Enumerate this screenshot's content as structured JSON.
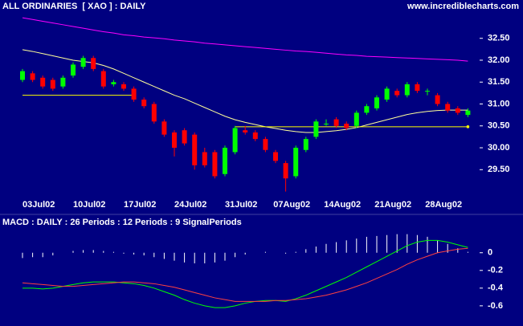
{
  "chart_data": [
    {
      "type": "candlestick",
      "title": "ALL ORDINARIES  [ XAO ] : DAILY",
      "subtitle": "www.incrediblecharts.com",
      "categories": [
        null,
        null,
        "03Jul02",
        null,
        null,
        null,
        null,
        "10Jul02",
        null,
        null,
        null,
        null,
        "17Jul02",
        null,
        null,
        null,
        null,
        "24Jul02",
        null,
        null,
        null,
        null,
        "31Jul02",
        null,
        null,
        null,
        null,
        "07Aug02",
        null,
        null,
        null,
        null,
        "14Aug02",
        null,
        null,
        null,
        null,
        "21Aug02",
        null,
        null,
        null,
        null,
        "28Aug02",
        null,
        null
      ],
      "open": [
        31.55,
        31.7,
        31.6,
        31.55,
        31.4,
        31.65,
        31.85,
        32.05,
        31.75,
        31.45,
        31.45,
        31.35,
        31.1,
        31.0,
        30.6,
        30.35,
        30.4,
        30.3,
        29.9,
        29.9,
        29.4,
        29.9,
        30.4,
        30.35,
        30.2,
        29.9,
        29.65,
        29.35,
        29.95,
        30.25,
        30.55,
        30.65,
        30.55,
        30.5,
        30.8,
        30.9,
        31.1,
        31.3,
        31.2,
        31.45,
        31.3,
        31.2,
        31.0,
        30.9,
        30.75
      ],
      "high": [
        31.8,
        31.75,
        31.65,
        31.6,
        31.65,
        31.95,
        32.1,
        32.1,
        31.8,
        31.55,
        31.5,
        31.4,
        31.15,
        31.05,
        30.65,
        30.4,
        30.45,
        30.35,
        30.0,
        29.95,
        30.05,
        30.5,
        30.5,
        30.4,
        30.25,
        29.95,
        29.7,
        30.05,
        30.25,
        30.65,
        30.65,
        30.7,
        30.6,
        30.85,
        31.0,
        31.2,
        31.4,
        31.35,
        31.5,
        31.5,
        31.35,
        31.25,
        31.05,
        30.95,
        30.9
      ],
      "low": [
        31.5,
        31.5,
        31.35,
        31.3,
        31.35,
        31.6,
        31.8,
        31.75,
        31.35,
        31.4,
        31.3,
        31.05,
        30.9,
        30.55,
        30.25,
        29.8,
        30.05,
        29.5,
        29.55,
        29.3,
        29.35,
        29.85,
        30.3,
        30.15,
        29.9,
        29.65,
        29.0,
        29.3,
        29.9,
        30.2,
        30.5,
        30.45,
        30.4,
        30.45,
        30.75,
        30.85,
        31.05,
        31.15,
        31.15,
        31.25,
        31.2,
        30.95,
        30.8,
        30.75,
        30.7
      ],
      "close": [
        31.75,
        31.55,
        31.4,
        31.35,
        31.6,
        31.9,
        32.05,
        31.8,
        31.4,
        31.5,
        31.35,
        31.1,
        30.95,
        30.6,
        30.3,
        30.0,
        30.1,
        29.6,
        29.6,
        29.35,
        30.0,
        30.45,
        30.35,
        30.2,
        29.95,
        29.7,
        29.3,
        30.0,
        30.2,
        30.6,
        30.55,
        30.5,
        30.45,
        30.8,
        30.95,
        31.15,
        31.35,
        31.2,
        31.45,
        31.3,
        31.3,
        31.0,
        30.85,
        30.8,
        30.85
      ],
      "up_color": "#00ff00",
      "down_color": "#ff0000",
      "overlays": [
        {
          "color": "#ffff99",
          "values": [
            32.24,
            32.2,
            32.15,
            32.1,
            32.05,
            32.0,
            31.97,
            31.94,
            31.88,
            31.8,
            31.7,
            31.6,
            31.5,
            31.4,
            31.3,
            31.2,
            31.12,
            31.02,
            30.92,
            30.82,
            30.72,
            30.64,
            30.58,
            30.53,
            30.48,
            30.44,
            30.4,
            30.37,
            30.35,
            30.35,
            30.37,
            30.39,
            30.42,
            30.46,
            30.52,
            30.58,
            30.64,
            30.7,
            30.76,
            30.8,
            30.83,
            30.85,
            30.86,
            30.86,
            30.86
          ]
        },
        {
          "color": "#ff00ff",
          "values": [
            32.97,
            32.93,
            32.89,
            32.85,
            32.81,
            32.77,
            32.73,
            32.69,
            32.65,
            32.62,
            32.58,
            32.56,
            32.53,
            32.51,
            32.49,
            32.46,
            32.44,
            32.42,
            32.39,
            32.37,
            32.35,
            32.33,
            32.31,
            32.29,
            32.27,
            32.25,
            32.23,
            32.21,
            32.2,
            32.18,
            32.16,
            32.14,
            32.12,
            32.11,
            32.09,
            32.08,
            32.07,
            32.06,
            32.05,
            32.04,
            32.03,
            32.02,
            32.01,
            32.0,
            31.98
          ]
        }
      ],
      "lines": [
        {
          "value": 31.2,
          "from": 0,
          "to": 11,
          "color": "#ffff00"
        },
        {
          "value": 30.48,
          "from": 21,
          "to": 44,
          "color": "#ffff00"
        }
      ],
      "ylim": [
        28.9,
        33.1
      ],
      "yticks": [
        {
          "value": 29.5,
          "label": "29.50"
        },
        {
          "value": 30,
          "label": "30.00"
        },
        {
          "value": 30.5,
          "label": "30.50"
        },
        {
          "value": 31,
          "label": "31.00"
        },
        {
          "value": 31.5,
          "label": "31.50"
        },
        {
          "value": 32,
          "label": "32.00"
        },
        {
          "value": 32.5,
          "label": "32.50"
        }
      ]
    },
    {
      "type": "macd",
      "title": "MACD : DAILY : 26 Periods : 12 Periods : 9 SignalPeriods",
      "series": [
        {
          "color": "#00ff00",
          "values": [
            -0.4,
            -0.4,
            -0.41,
            -0.4,
            -0.38,
            -0.36,
            -0.34,
            -0.33,
            -0.33,
            -0.33,
            -0.34,
            -0.35,
            -0.37,
            -0.4,
            -0.44,
            -0.48,
            -0.53,
            -0.57,
            -0.6,
            -0.62,
            -0.62,
            -0.6,
            -0.57,
            -0.55,
            -0.54,
            -0.54,
            -0.55,
            -0.52,
            -0.48,
            -0.43,
            -0.38,
            -0.33,
            -0.28,
            -0.22,
            -0.16,
            -0.1,
            -0.04,
            0.02,
            0.08,
            0.12,
            0.14,
            0.14,
            0.12,
            0.09,
            0.06
          ]
        },
        {
          "color": "#ff4040",
          "values": [
            -0.34,
            -0.35,
            -0.36,
            -0.37,
            -0.38,
            -0.38,
            -0.37,
            -0.36,
            -0.35,
            -0.34,
            -0.33,
            -0.33,
            -0.34,
            -0.35,
            -0.37,
            -0.39,
            -0.42,
            -0.45,
            -0.48,
            -0.51,
            -0.53,
            -0.55,
            -0.55,
            -0.55,
            -0.55,
            -0.54,
            -0.54,
            -0.53,
            -0.52,
            -0.5,
            -0.48,
            -0.45,
            -0.42,
            -0.38,
            -0.34,
            -0.29,
            -0.24,
            -0.19,
            -0.13,
            -0.08,
            -0.04,
            0.0,
            0.02,
            0.04,
            0.05
          ]
        }
      ],
      "histogram": {
        "color": "#ffffff",
        "values": [
          -0.06,
          -0.05,
          -0.05,
          -0.03,
          0,
          0.02,
          0.03,
          0.03,
          0.02,
          0.01,
          -0.01,
          -0.02,
          -0.03,
          -0.05,
          -0.07,
          -0.09,
          -0.11,
          -0.12,
          -0.12,
          -0.11,
          -0.09,
          -0.05,
          -0.02,
          0,
          0.01,
          0,
          -0.01,
          0.01,
          0.04,
          0.07,
          0.1,
          0.12,
          0.14,
          0.16,
          0.18,
          0.19,
          0.2,
          0.21,
          0.21,
          0.2,
          0.18,
          0.14,
          0.1,
          0.05,
          0.01
        ]
      },
      "ylim": [
        -0.81,
        0.27
      ],
      "yticks": [
        -0.6,
        -0.4,
        -0.2,
        0
      ]
    }
  ]
}
